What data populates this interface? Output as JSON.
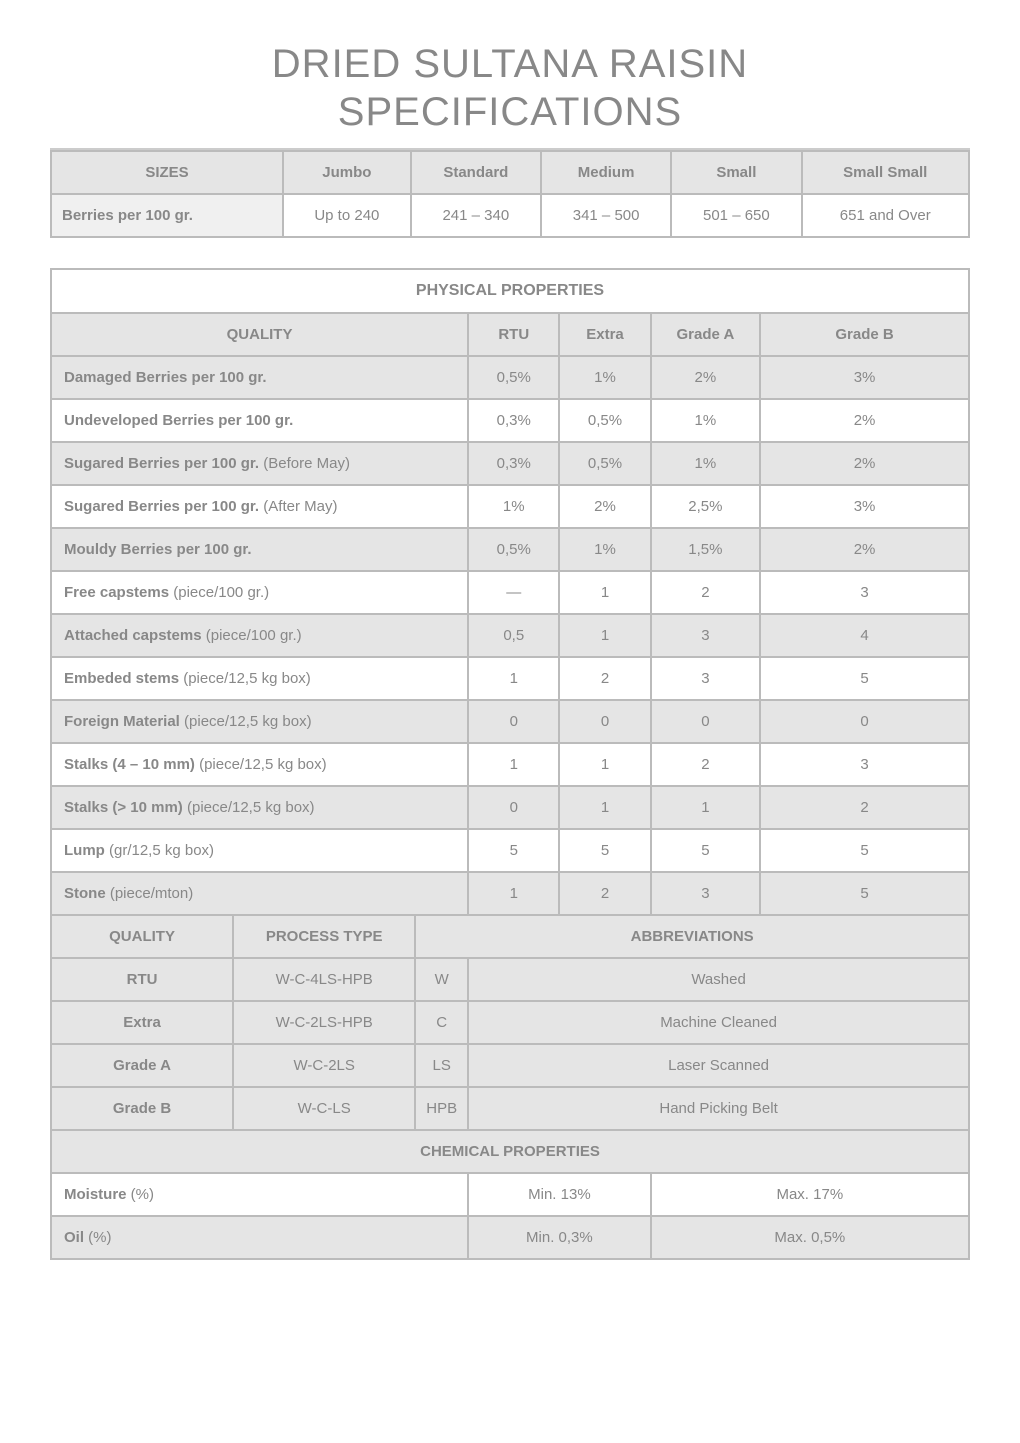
{
  "title_line1": "DRIED SULTANA RAISIN",
  "title_line2": "SPECIFICATIONS",
  "sizes": {
    "header": "SIZES",
    "columns": [
      "Jumbo",
      "Standard",
      "Medium",
      "Small",
      "Small Small"
    ],
    "row_label": "Berries per 100 gr.",
    "values": [
      "Up to 240",
      "241 – 340",
      "341 – 500",
      "501 – 650",
      "651 and Over"
    ]
  },
  "physical": {
    "header": "PHYSICAL PROPERTIES",
    "quality_header": "QUALITY",
    "grade_headers": [
      "RTU",
      "Extra",
      "Grade A",
      "Grade B"
    ],
    "rows": [
      {
        "label": "Damaged Berries per 100 gr.",
        "suffix": "",
        "vals": [
          "0,5%",
          "1%",
          "2%",
          "3%"
        ],
        "bg": "gray"
      },
      {
        "label": "Undeveloped Berries per 100 gr.",
        "suffix": "",
        "vals": [
          "0,3%",
          "0,5%",
          "1%",
          "2%"
        ],
        "bg": "white"
      },
      {
        "label": "Sugared Berries per 100 gr.",
        "suffix": " (Before May)",
        "vals": [
          "0,3%",
          "0,5%",
          "1%",
          "2%"
        ],
        "bg": "gray"
      },
      {
        "label": "Sugared Berries per 100 gr.",
        "suffix": " (After May)",
        "vals": [
          "1%",
          "2%",
          "2,5%",
          "3%"
        ],
        "bg": "white"
      },
      {
        "label": "Mouldy Berries per 100 gr.",
        "suffix": "",
        "vals": [
          "0,5%",
          "1%",
          "1,5%",
          "2%"
        ],
        "bg": "gray"
      },
      {
        "label": "Free capstems",
        "suffix": " (piece/100 gr.)",
        "vals": [
          "—",
          "1",
          "2",
          "3"
        ],
        "bg": "white"
      },
      {
        "label": "Attached capstems",
        "suffix": " (piece/100 gr.)",
        "vals": [
          "0,5",
          "1",
          "3",
          "4"
        ],
        "bg": "gray"
      },
      {
        "label": "Embeded stems",
        "suffix": " (piece/12,5 kg box)",
        "vals": [
          "1",
          "2",
          "3",
          "5"
        ],
        "bg": "white"
      },
      {
        "label": "Foreign Material",
        "suffix": " (piece/12,5 kg box)",
        "vals": [
          "0",
          "0",
          "0",
          "0"
        ],
        "bg": "gray"
      },
      {
        "label": "Stalks (4 – 10 mm)",
        "suffix": " (piece/12,5 kg box)",
        "vals": [
          "1",
          "1",
          "2",
          "3"
        ],
        "bg": "white"
      },
      {
        "label": "Stalks (> 10 mm)",
        "suffix": " (piece/12,5 kg box)",
        "vals": [
          "0",
          "1",
          "1",
          "2"
        ],
        "bg": "gray"
      },
      {
        "label": "Lump",
        "suffix": " (gr/12,5 kg box)",
        "vals": [
          "5",
          "5",
          "5",
          "5"
        ],
        "bg": "white"
      },
      {
        "label": "Stone",
        "suffix": " (piece/mton)",
        "vals": [
          "1",
          "2",
          "3",
          "5"
        ],
        "bg": "gray"
      }
    ]
  },
  "abbrev": {
    "quality_header": "QUALITY",
    "process_header": "PROCESS TYPE",
    "abbrev_header": "ABBREVIATIONS",
    "rows": [
      {
        "quality": "RTU",
        "process": "W-C-4LS-HPB",
        "code": "W",
        "meaning": "Washed"
      },
      {
        "quality": "Extra",
        "process": "W-C-2LS-HPB",
        "code": "C",
        "meaning": "Machine Cleaned"
      },
      {
        "quality": "Grade A",
        "process": "W-C-2LS",
        "code": "LS",
        "meaning": "Laser Scanned"
      },
      {
        "quality": "Grade B",
        "process": "W-C-LS",
        "code": "HPB",
        "meaning": "Hand Picking Belt"
      }
    ]
  },
  "chemical": {
    "header": "CHEMICAL PROPERTIES",
    "rows": [
      {
        "label": "Moisture",
        "suffix": " (%)",
        "min": "Min. 13%",
        "max": "Max. 17%",
        "bg": "white"
      },
      {
        "label": "Oil",
        "suffix": " (%)",
        "min": "Min. 0,3%",
        "max": "Max. 0,5%",
        "bg": "gray"
      }
    ]
  },
  "colors": {
    "text": "#888888",
    "border": "#bbbbbb",
    "header_bg": "#e5e5e5",
    "white_bg": "#ffffff"
  }
}
